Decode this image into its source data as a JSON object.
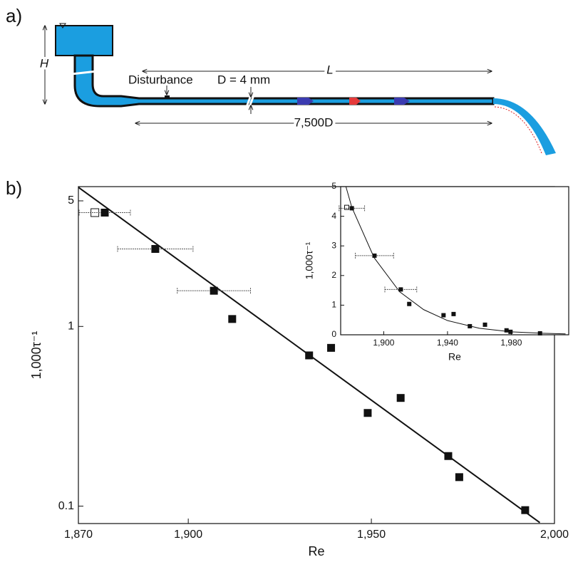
{
  "diagram": {
    "panel_a": "a)",
    "panel_b": "b)",
    "height_label": "H",
    "disturbance": "Disturbance",
    "diameter": "D = 4 mm",
    "length": "L",
    "length_in_d": "7,500D"
  },
  "chart_data": [
    {
      "type": "scatter",
      "xlabel": "Re",
      "ylabel": "1,000τ⁻¹",
      "ylog": true,
      "x": [
        1877.2,
        1891,
        1907,
        1912,
        1933,
        1939,
        1949,
        1958,
        1971,
        1974,
        1992
      ],
      "values": [
        4.3,
        2.7,
        1.58,
        1.1,
        0.69,
        0.76,
        0.33,
        0.4,
        0.19,
        0.145,
        0.095
      ],
      "xerr": [
        7,
        10.3,
        10,
        null,
        null,
        null,
        null,
        null,
        null,
        null,
        null
      ],
      "open_x": 1874.5,
      "open_value": 4.3,
      "fit_x": [
        1870,
        1996
      ],
      "fit_values": [
        5.95,
        0.081
      ],
      "xlim": [
        1870,
        2000
      ],
      "ylim": [
        0.08,
        6
      ],
      "xticks": [
        {
          "value": 1870,
          "label": "1,870"
        },
        {
          "value": 1900,
          "label": "1,900"
        },
        {
          "value": 1950,
          "label": "1,950"
        },
        {
          "value": 2000,
          "label": "2,000"
        }
      ],
      "yticks": [
        0.1,
        1,
        5
      ]
    },
    {
      "type": "scatter",
      "xlabel": "Re",
      "ylabel": "1,000τ⁻¹",
      "ylog": false,
      "x": [
        1880,
        1894.2,
        1910.7,
        1916,
        1937.5,
        1943.8,
        1954,
        1963.5,
        1977,
        1979.5,
        1998
      ],
      "values": [
        4.27,
        2.67,
        1.53,
        1.04,
        0.66,
        0.7,
        0.29,
        0.34,
        0.15,
        0.1,
        0.05
      ],
      "xerr": [
        8,
        12,
        10,
        null,
        null,
        null,
        null,
        null,
        null,
        null,
        null
      ],
      "open_x": 1876.8,
      "open_value": 4.3,
      "fit_x": [
        1876.3,
        1880,
        1894,
        1910,
        1925,
        1940,
        1960,
        1980,
        2000,
        2014
      ],
      "fit_values": [
        5,
        4.3,
        2.6,
        1.45,
        0.85,
        0.48,
        0.22,
        0.1,
        0.05,
        0.03
      ],
      "xlim": [
        1873,
        2016
      ],
      "ylim": [
        0,
        5
      ],
      "xticks": [
        {
          "value": 1900,
          "label": "1,900"
        },
        {
          "value": 1940,
          "label": "1,940"
        },
        {
          "value": 1980,
          "label": "1,980"
        }
      ],
      "yticks": [
        0,
        1,
        2,
        3,
        4,
        5
      ]
    }
  ]
}
